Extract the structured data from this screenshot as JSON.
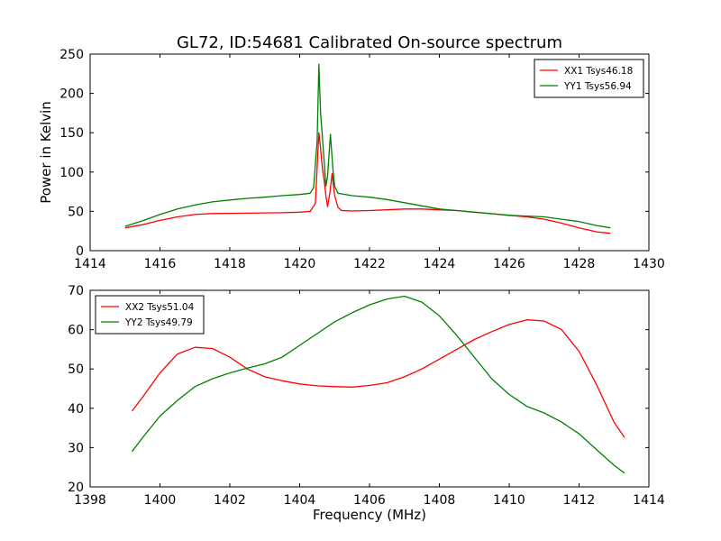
{
  "figure": {
    "title": "GL72, ID:54681 Calibrated On-source spectrum",
    "xlabel": "Frequency (MHz)"
  },
  "chart_data": [
    {
      "type": "line",
      "title": "GL72, ID:54681 Calibrated On-source spectrum",
      "xlabel": "",
      "ylabel": "Power in Kelvin",
      "xlim": [
        1414,
        1430
      ],
      "ylim": [
        0,
        250
      ],
      "xticks": [
        "1414",
        "1416",
        "1418",
        "1420",
        "1422",
        "1424",
        "1426",
        "1428",
        "1430"
      ],
      "yticks": [
        "0",
        "50",
        "100",
        "150",
        "200",
        "250"
      ],
      "grid": false,
      "legend_position": "top-right",
      "series": [
        {
          "name": "XX1 Tsys46.18",
          "color": "#ff0000",
          "points": [
            [
              1415.0,
              29
            ],
            [
              1415.5,
              33
            ],
            [
              1416.0,
              38.5
            ],
            [
              1416.5,
              43
            ],
            [
              1417.0,
              46
            ],
            [
              1417.5,
              47.2
            ],
            [
              1418.0,
              47.5
            ],
            [
              1418.5,
              47.7
            ],
            [
              1419.0,
              48
            ],
            [
              1419.5,
              48.3
            ],
            [
              1420.0,
              49
            ],
            [
              1420.3,
              50
            ],
            [
              1420.45,
              60
            ],
            [
              1420.55,
              150
            ],
            [
              1420.6,
              130
            ],
            [
              1420.65,
              105
            ],
            [
              1420.7,
              90
            ],
            [
              1420.75,
              70
            ],
            [
              1420.8,
              56
            ],
            [
              1420.87,
              75
            ],
            [
              1420.93,
              98
            ],
            [
              1421.0,
              70
            ],
            [
              1421.1,
              55
            ],
            [
              1421.2,
              51
            ],
            [
              1421.5,
              50.5
            ],
            [
              1422.0,
              51
            ],
            [
              1422.5,
              52
            ],
            [
              1423.0,
              53
            ],
            [
              1423.5,
              53
            ],
            [
              1424.0,
              52
            ],
            [
              1424.5,
              51
            ],
            [
              1425.0,
              49
            ],
            [
              1425.5,
              47
            ],
            [
              1426.0,
              45
            ],
            [
              1426.5,
              43
            ],
            [
              1427.0,
              40
            ],
            [
              1427.5,
              35
            ],
            [
              1428.0,
              29
            ],
            [
              1428.5,
              24
            ],
            [
              1428.9,
              22
            ]
          ]
        },
        {
          "name": "YY1 Tsys56.94",
          "color": "#008000",
          "points": [
            [
              1415.0,
              31
            ],
            [
              1415.5,
              38
            ],
            [
              1416.0,
              46
            ],
            [
              1416.5,
              53
            ],
            [
              1417.0,
              58
            ],
            [
              1417.5,
              62
            ],
            [
              1418.0,
              64.5
            ],
            [
              1418.5,
              66.5
            ],
            [
              1419.0,
              68
            ],
            [
              1419.5,
              70
            ],
            [
              1420.0,
              71.5
            ],
            [
              1420.3,
              73
            ],
            [
              1420.4,
              80
            ],
            [
              1420.5,
              140
            ],
            [
              1420.55,
              237
            ],
            [
              1420.6,
              175
            ],
            [
              1420.65,
              145
            ],
            [
              1420.7,
              115
            ],
            [
              1420.75,
              82
            ],
            [
              1420.8,
              95
            ],
            [
              1420.88,
              148
            ],
            [
              1420.95,
              105
            ],
            [
              1421.0,
              82
            ],
            [
              1421.1,
              73
            ],
            [
              1421.5,
              70
            ],
            [
              1422.0,
              68
            ],
            [
              1422.5,
              65
            ],
            [
              1423.0,
              61
            ],
            [
              1423.5,
              57
            ],
            [
              1424.0,
              53
            ],
            [
              1424.5,
              51
            ],
            [
              1425.0,
              49
            ],
            [
              1425.5,
              47
            ],
            [
              1426.0,
              45
            ],
            [
              1426.5,
              44
            ],
            [
              1427.0,
              43
            ],
            [
              1427.5,
              40
            ],
            [
              1428.0,
              37
            ],
            [
              1428.5,
              32
            ],
            [
              1428.9,
              29
            ]
          ]
        }
      ]
    },
    {
      "type": "line",
      "title": "",
      "xlabel": "Frequency (MHz)",
      "ylabel": "",
      "xlim": [
        1398,
        1414
      ],
      "ylim": [
        20,
        70
      ],
      "xticks": [
        "1398",
        "1400",
        "1402",
        "1404",
        "1406",
        "1408",
        "1410",
        "1412",
        "1414"
      ],
      "yticks": [
        "20",
        "30",
        "40",
        "50",
        "60",
        "70"
      ],
      "grid": false,
      "legend_position": "top-left",
      "series": [
        {
          "name": "XX2 Tsys51.04",
          "color": "#ff0000",
          "points": [
            [
              1399.2,
              39.3
            ],
            [
              1399.5,
              42.8
            ],
            [
              1400.0,
              49
            ],
            [
              1400.5,
              53.8
            ],
            [
              1401.0,
              55.5
            ],
            [
              1401.5,
              55.2
            ],
            [
              1402.0,
              53
            ],
            [
              1402.5,
              50
            ],
            [
              1403.0,
              48
            ],
            [
              1403.5,
              47
            ],
            [
              1404.0,
              46.2
            ],
            [
              1404.5,
              45.7
            ],
            [
              1405.0,
              45.5
            ],
            [
              1405.5,
              45.4
            ],
            [
              1406.0,
              45.8
            ],
            [
              1406.5,
              46.5
            ],
            [
              1407.0,
              48
            ],
            [
              1407.5,
              50
            ],
            [
              1408.0,
              52.5
            ],
            [
              1408.5,
              55
            ],
            [
              1409.0,
              57.5
            ],
            [
              1409.5,
              59.5
            ],
            [
              1410.0,
              61.3
            ],
            [
              1410.5,
              62.5
            ],
            [
              1411.0,
              62.2
            ],
            [
              1411.5,
              60
            ],
            [
              1412.0,
              54.5
            ],
            [
              1412.5,
              46
            ],
            [
              1413.0,
              36.5
            ],
            [
              1413.3,
              32.6
            ]
          ]
        },
        {
          "name": "YY2 Tsys49.79",
          "color": "#008000",
          "points": [
            [
              1399.2,
              29
            ],
            [
              1399.5,
              32.5
            ],
            [
              1400.0,
              38
            ],
            [
              1400.5,
              42
            ],
            [
              1401.0,
              45.5
            ],
            [
              1401.5,
              47.5
            ],
            [
              1402.0,
              49
            ],
            [
              1402.5,
              50.2
            ],
            [
              1403.0,
              51.3
            ],
            [
              1403.5,
              53
            ],
            [
              1404.0,
              56
            ],
            [
              1404.5,
              59
            ],
            [
              1405.0,
              62
            ],
            [
              1405.5,
              64.3
            ],
            [
              1406.0,
              66.3
            ],
            [
              1406.5,
              67.8
            ],
            [
              1407.0,
              68.5
            ],
            [
              1407.5,
              67
            ],
            [
              1408.0,
              63.5
            ],
            [
              1408.5,
              58.5
            ],
            [
              1409.0,
              53
            ],
            [
              1409.5,
              47.5
            ],
            [
              1410.0,
              43.5
            ],
            [
              1410.5,
              40.5
            ],
            [
              1411.0,
              38.8
            ],
            [
              1411.5,
              36.5
            ],
            [
              1412.0,
              33.5
            ],
            [
              1412.5,
              29.5
            ],
            [
              1413.0,
              25.5
            ],
            [
              1413.3,
              23.5
            ]
          ]
        }
      ]
    }
  ]
}
